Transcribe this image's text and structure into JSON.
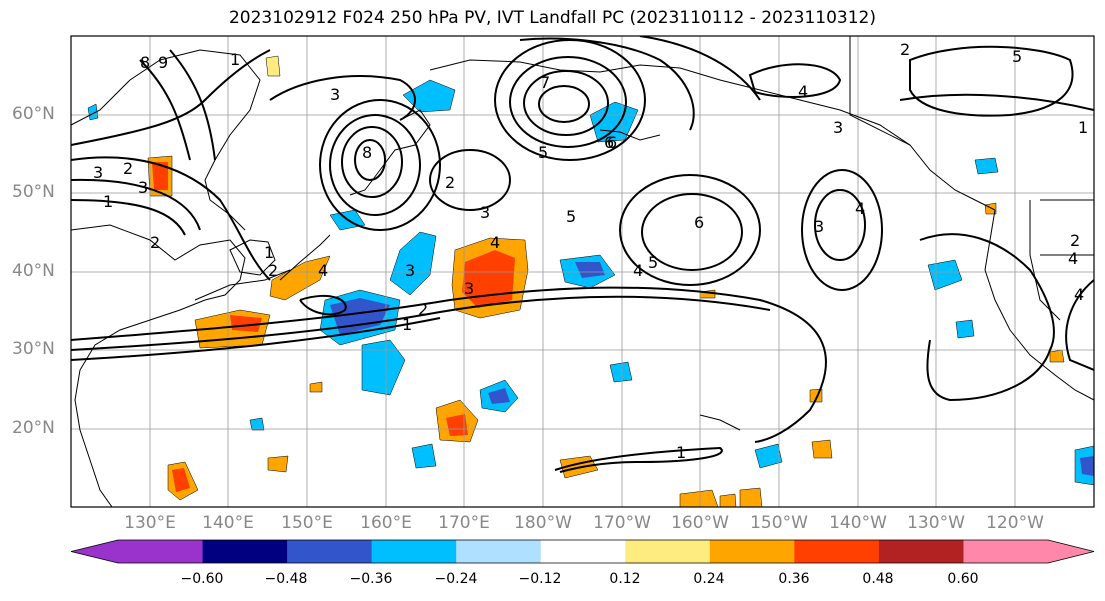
{
  "title": "2023102912 F024 250 hPa PV, IVT Landfall PC (2023110112 - 2023110312)",
  "lat_labels": [
    "60°N",
    "50°N",
    "40°N",
    "30°N",
    "20°N"
  ],
  "lon_labels": [
    "130°E",
    "140°E",
    "150°E",
    "160°E",
    "170°E",
    "180°W",
    "170°W",
    "160°W",
    "150°W",
    "140°W",
    "130°W",
    "120°W"
  ],
  "colorbar": {
    "colors": [
      "#9933cc",
      "#000080",
      "#3355cc",
      "#00bfff",
      "#b0e0ff",
      "#ffffff",
      "#ffec80",
      "#ffa500",
      "#ff4000",
      "#b22222",
      "#ff88aa"
    ],
    "tick_labels": [
      "−0.60",
      "−0.48",
      "−0.36",
      "−0.24",
      "−0.12",
      "0.12",
      "0.24",
      "0.36",
      "0.48",
      "0.60"
    ]
  },
  "contour_labels": [
    "8",
    "9",
    "1",
    "4",
    "3",
    "6",
    "7",
    "8",
    "5",
    "3",
    "2",
    "1",
    "2",
    "1",
    "3",
    "2",
    "3",
    "4",
    "5",
    "6",
    "4",
    "5",
    "6",
    "1",
    "2",
    "3",
    "4",
    "3",
    "4",
    "3",
    "2",
    "1",
    "2",
    "3",
    "5",
    "4",
    "2",
    "4",
    "1"
  ]
}
